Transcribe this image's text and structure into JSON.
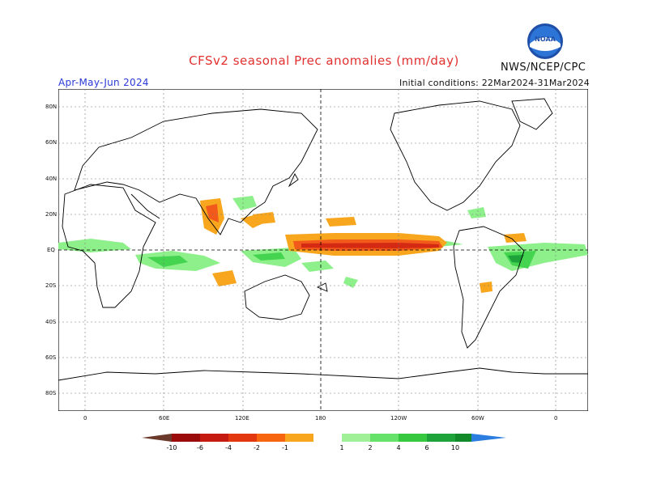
{
  "header": {
    "title": "CFSv2 seasonal Prec anomalies (mm/day)",
    "period": "Apr-May-Jun 2024",
    "initial_conditions": "Initial conditions: 22Mar2024-31Mar2024",
    "agency": "NWS/NCEP/CPC",
    "logo_text": "NOAA"
  },
  "map": {
    "lat_labels": [
      "80N",
      "60N",
      "40N",
      "20N",
      "EQ",
      "20S",
      "40S",
      "60S",
      "80S"
    ],
    "lon_labels": [
      "0",
      "60E",
      "120E",
      "180",
      "120W",
      "60W",
      "0"
    ],
    "colors": {
      "land_outline": "#000000",
      "grid": "#777777",
      "dry_strong": "#d42a14",
      "dry_mid": "#f25a1c",
      "dry_light": "#f7a61e",
      "wet_light": "#8ef08a",
      "wet_mid": "#44d450",
      "wet_strong": "#1ea33a"
    }
  },
  "legend": {
    "labels": [
      "-10",
      "-6",
      "-4",
      "-2",
      "-1",
      "1",
      "2",
      "4",
      "6",
      "10"
    ],
    "colors": [
      "#6b3a2a",
      "#9c0b0b",
      "#c41a0f",
      "#e3380f",
      "#f7660f",
      "#f7a61e",
      "#ffffff",
      "#9ff096",
      "#66e26a",
      "#36c83e",
      "#1ea33a",
      "#128a2a",
      "#2b7de0"
    ]
  }
}
